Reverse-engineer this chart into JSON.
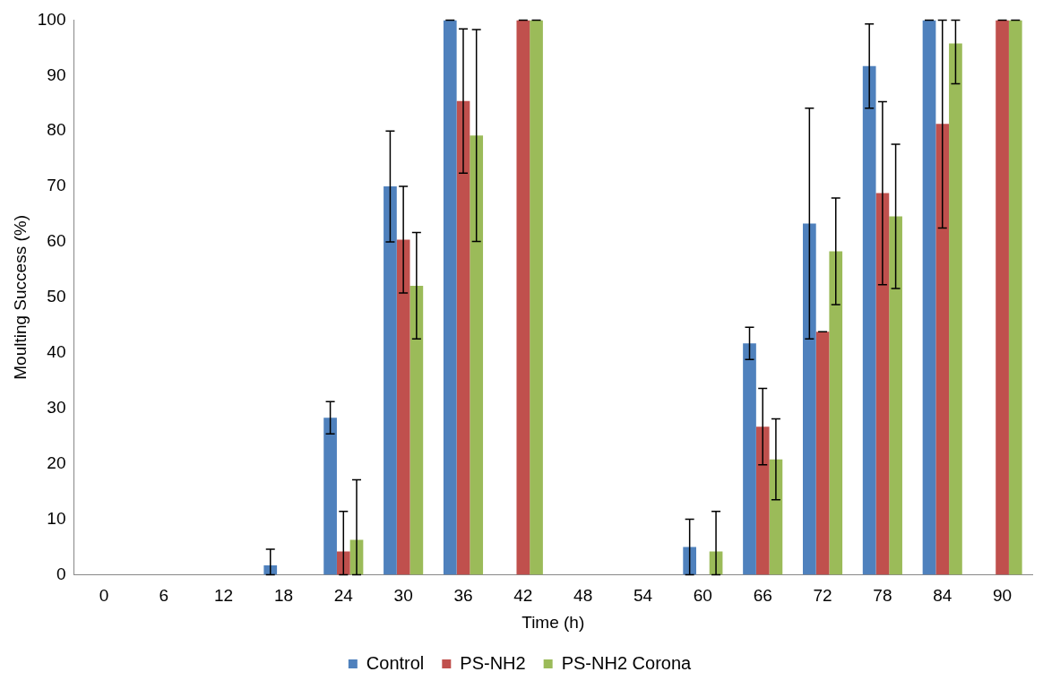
{
  "chart_data": {
    "type": "bar",
    "xlabel": "Time (h)",
    "ylabel": "Moulting Success (%)",
    "categories": [
      "0",
      "6",
      "12",
      "18",
      "24",
      "30",
      "36",
      "42",
      "48",
      "54",
      "60",
      "66",
      "72",
      "78",
      "84",
      "90"
    ],
    "ylim": [
      0,
      100
    ],
    "yticks": [
      0,
      10,
      20,
      30,
      40,
      50,
      60,
      70,
      80,
      90,
      100
    ],
    "grid": false,
    "legend": "bottom",
    "series": [
      {
        "name": "Control",
        "color": "#4f81bd",
        "values": [
          0,
          0,
          0,
          1.7,
          28.3,
          70,
          100,
          0,
          0,
          0,
          5,
          41.7,
          63.3,
          91.7,
          100,
          0
        ],
        "errors": [
          null,
          null,
          null,
          [
            0,
            4.6
          ],
          2.9,
          10,
          0,
          null,
          null,
          null,
          [
            0,
            10
          ],
          2.9,
          20.8,
          7.6,
          0,
          null
        ]
      },
      {
        "name": "PS-NH2",
        "color": "#c0504d",
        "values": [
          0,
          0,
          0,
          0,
          4.2,
          60.4,
          85.4,
          100,
          0,
          0,
          0,
          26.7,
          43.8,
          68.8,
          81.3,
          100
        ],
        "errors": [
          null,
          null,
          null,
          null,
          [
            0,
            11.4
          ],
          9.6,
          13,
          0,
          null,
          null,
          null,
          6.9,
          0,
          16.5,
          [
            62.5,
            100
          ],
          0
        ]
      },
      {
        "name": "PS-NH2 Corona",
        "color": "#9bbb59",
        "values": [
          0,
          0,
          0,
          0,
          6.3,
          52.1,
          79.2,
          100,
          0,
          0,
          4.2,
          20.8,
          58.3,
          64.6,
          95.8,
          100
        ],
        "errors": [
          null,
          null,
          null,
          null,
          [
            0,
            17.1
          ],
          9.6,
          19.1,
          0,
          null,
          null,
          [
            0,
            11.4
          ],
          7.3,
          9.6,
          13,
          [
            88.5,
            100
          ],
          0
        ]
      }
    ]
  }
}
